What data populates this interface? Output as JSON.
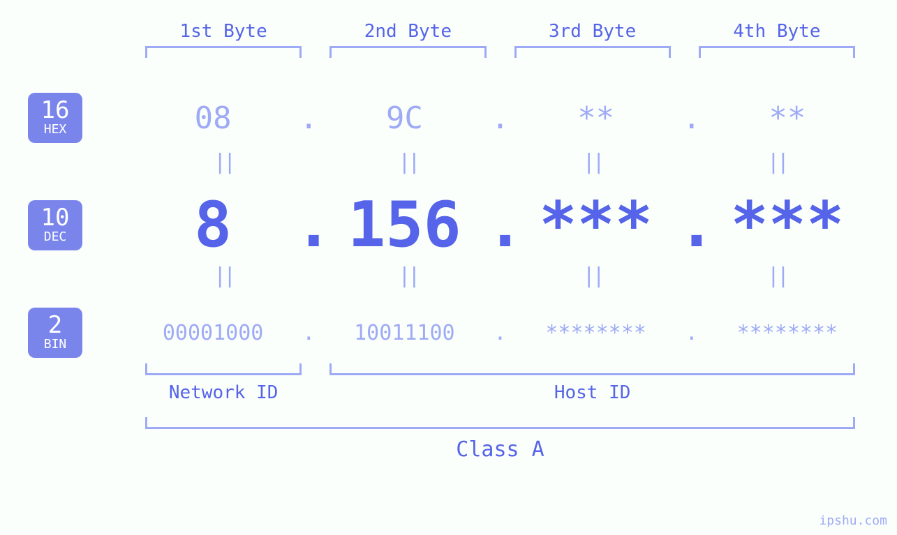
{
  "palette": {
    "background": "#fbfffb",
    "accent": "#5564e8",
    "light": "#9eaaf5",
    "badge_bg": "#7a85ec",
    "badge_fg": "#ffffff"
  },
  "fonts": {
    "family": "monospace",
    "byte_header_size_pt": 20,
    "hex_size_pt": 33,
    "dec_size_pt": 68,
    "bin_size_pt": 22,
    "label_size_pt": 20,
    "class_size_pt": 22
  },
  "equals_glyph": "||",
  "dot": ".",
  "byte_headers": [
    "1st Byte",
    "2nd Byte",
    "3rd Byte",
    "4th Byte"
  ],
  "badges": {
    "hex": {
      "base": "16",
      "name": "HEX"
    },
    "dec": {
      "base": "10",
      "name": "DEC"
    },
    "bin": {
      "base": "2",
      "name": "BIN"
    }
  },
  "bytes": {
    "hex": [
      "08",
      "9C",
      "**",
      "**"
    ],
    "dec": [
      "8",
      "156",
      "***",
      "***"
    ],
    "bin": [
      "00001000",
      "10011100",
      "********",
      "********"
    ]
  },
  "ids": {
    "network": {
      "label": "Network ID",
      "byte_span": [
        1,
        1
      ]
    },
    "host": {
      "label": "Host ID",
      "byte_span": [
        2,
        4
      ]
    }
  },
  "class_label": "Class A",
  "watermark": "ipshu.com"
}
